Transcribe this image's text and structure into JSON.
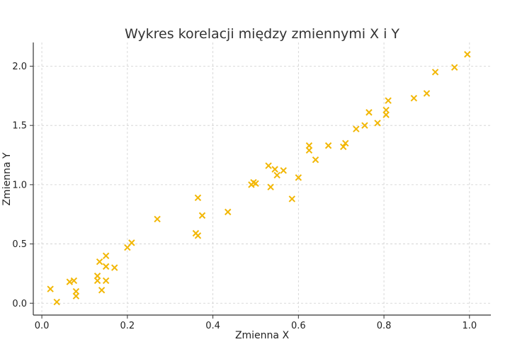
{
  "chart_data": {
    "type": "scatter",
    "title": "Wykres korelacji między zmiennymi X i Y",
    "xlabel": "Zmienna X",
    "ylabel": "Zmienna Y",
    "xlim": [
      -0.02,
      1.05
    ],
    "ylim": [
      -0.1,
      2.2
    ],
    "xticks": [
      "0.0",
      "0.2",
      "0.4",
      "0.6",
      "0.8",
      "1.0"
    ],
    "yticks": [
      "0.0",
      "0.5",
      "1.0",
      "1.5",
      "2.0"
    ],
    "grid": true,
    "marker": "x",
    "color": "#f2b705",
    "points": [
      [
        0.02,
        0.12
      ],
      [
        0.035,
        0.01
      ],
      [
        0.065,
        0.18
      ],
      [
        0.075,
        0.19
      ],
      [
        0.08,
        0.1
      ],
      [
        0.08,
        0.06
      ],
      [
        0.13,
        0.23
      ],
      [
        0.13,
        0.19
      ],
      [
        0.135,
        0.35
      ],
      [
        0.14,
        0.11
      ],
      [
        0.15,
        0.4
      ],
      [
        0.15,
        0.31
      ],
      [
        0.15,
        0.19
      ],
      [
        0.17,
        0.3
      ],
      [
        0.2,
        0.47
      ],
      [
        0.21,
        0.51
      ],
      [
        0.27,
        0.71
      ],
      [
        0.36,
        0.59
      ],
      [
        0.365,
        0.89
      ],
      [
        0.365,
        0.57
      ],
      [
        0.375,
        0.74
      ],
      [
        0.435,
        0.77
      ],
      [
        0.49,
        1.0
      ],
      [
        0.495,
        1.02
      ],
      [
        0.5,
        1.01
      ],
      [
        0.53,
        1.16
      ],
      [
        0.535,
        0.98
      ],
      [
        0.545,
        1.13
      ],
      [
        0.55,
        1.08
      ],
      [
        0.565,
        1.12
      ],
      [
        0.585,
        0.88
      ],
      [
        0.6,
        1.06
      ],
      [
        0.625,
        1.33
      ],
      [
        0.625,
        1.29
      ],
      [
        0.64,
        1.21
      ],
      [
        0.67,
        1.33
      ],
      [
        0.705,
        1.32
      ],
      [
        0.71,
        1.35
      ],
      [
        0.735,
        1.47
      ],
      [
        0.755,
        1.5
      ],
      [
        0.765,
        1.61
      ],
      [
        0.785,
        1.52
      ],
      [
        0.805,
        1.59
      ],
      [
        0.805,
        1.63
      ],
      [
        0.81,
        1.71
      ],
      [
        0.87,
        1.73
      ],
      [
        0.9,
        1.77
      ],
      [
        0.92,
        1.95
      ],
      [
        0.965,
        1.99
      ],
      [
        0.995,
        2.1
      ]
    ]
  }
}
